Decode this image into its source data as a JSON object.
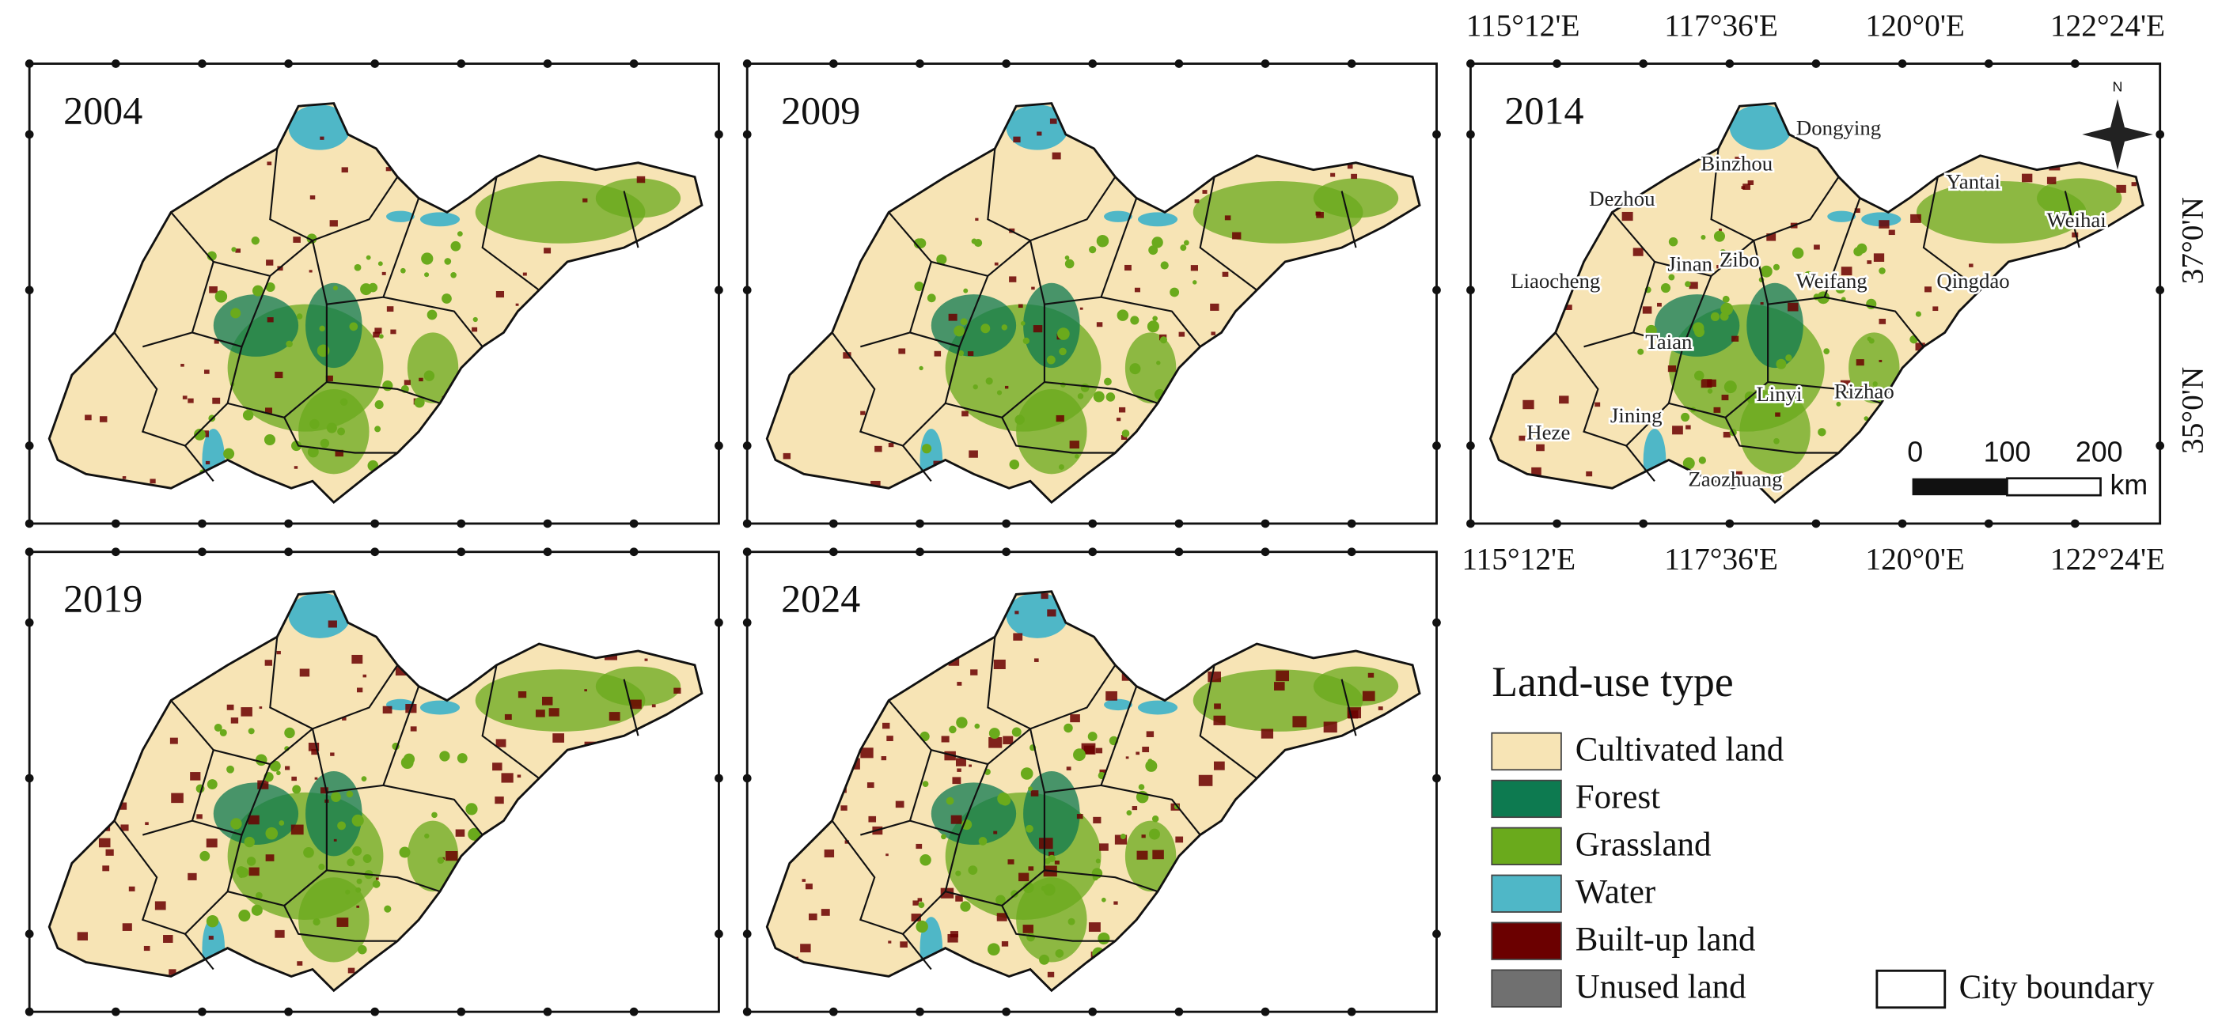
{
  "panels": [
    {
      "year": "2004"
    },
    {
      "year": "2009"
    },
    {
      "year": "2014"
    },
    {
      "year": "2019"
    },
    {
      "year": "2024"
    }
  ],
  "coordinates": {
    "longitude": [
      "115°12'E",
      "117°36'E",
      "120°0'E",
      "122°24'E"
    ],
    "latitude": [
      "37°0'N",
      "35°0'N"
    ]
  },
  "cities": [
    "Dongying",
    "Binzhou",
    "Dezhou",
    "Yantai",
    "Weihai",
    "Liaocheng",
    "Jinan",
    "Zibo",
    "Weifang",
    "Qingdao",
    "Taian",
    "Linyi",
    "Rizhao",
    "Heze",
    "Jining",
    "Zaozhuang"
  ],
  "north_arrow": "N",
  "scale_bar": {
    "ticks": [
      "0",
      "100",
      "200"
    ],
    "unit": "km"
  },
  "legend": {
    "title": "Land-use type",
    "items": [
      {
        "label": "Cultivated land",
        "color": "#f7e4b5"
      },
      {
        "label": "Forest",
        "color": "#0d7a50"
      },
      {
        "label": "Grassland",
        "color": "#6aaa1c"
      },
      {
        "label": "Water",
        "color": "#4fb7c7"
      },
      {
        "label": "Built-up land",
        "color": "#6b0000"
      },
      {
        "label": "Unused land",
        "color": "#707070"
      }
    ],
    "boundary": "City boundary"
  }
}
